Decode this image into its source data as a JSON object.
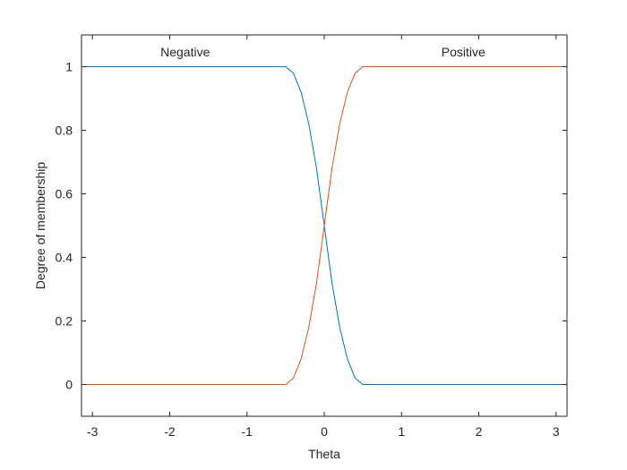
{
  "chart_data": {
    "type": "line",
    "title": "",
    "xlabel": "Theta",
    "ylabel": "Degree of membership",
    "xlim": [
      -3.1416,
      3.1416
    ],
    "ylim": [
      -0.1,
      1.1
    ],
    "xticks": [
      -3,
      -2,
      -1,
      0,
      1,
      2,
      3
    ],
    "xtick_labels": [
      "-3",
      "-2",
      "-1",
      "0",
      "1",
      "2",
      "3"
    ],
    "yticks": [
      0,
      0.2,
      0.4,
      0.6,
      0.8,
      1
    ],
    "ytick_labels": [
      "0",
      "0.2",
      "0.4",
      "0.6",
      "0.8",
      "1"
    ],
    "grid": false,
    "box": true,
    "series": [
      {
        "color": "#0072BD",
        "x": [
          -3.1416,
          -0.5,
          -0.4,
          -0.3,
          -0.2,
          -0.1,
          0,
          0.1,
          0.2,
          0.3,
          0.4,
          0.5,
          3.1416
        ],
        "y": [
          1,
          1,
          0.98,
          0.92,
          0.82,
          0.68,
          0.5,
          0.32,
          0.18,
          0.08,
          0.02,
          0,
          0
        ]
      },
      {
        "color": "#D95319",
        "x": [
          -3.1416,
          -0.5,
          -0.4,
          -0.3,
          -0.2,
          -0.1,
          0,
          0.1,
          0.2,
          0.3,
          0.4,
          0.5,
          3.1416
        ],
        "y": [
          0,
          0,
          0.02,
          0.08,
          0.18,
          0.32,
          0.5,
          0.68,
          0.82,
          0.92,
          0.98,
          1,
          1
        ]
      }
    ],
    "annotations": [
      {
        "text": "Negative",
        "x": -1.8,
        "y": 1.047
      },
      {
        "text": "Positive",
        "x": 1.8,
        "y": 1.047
      }
    ]
  }
}
